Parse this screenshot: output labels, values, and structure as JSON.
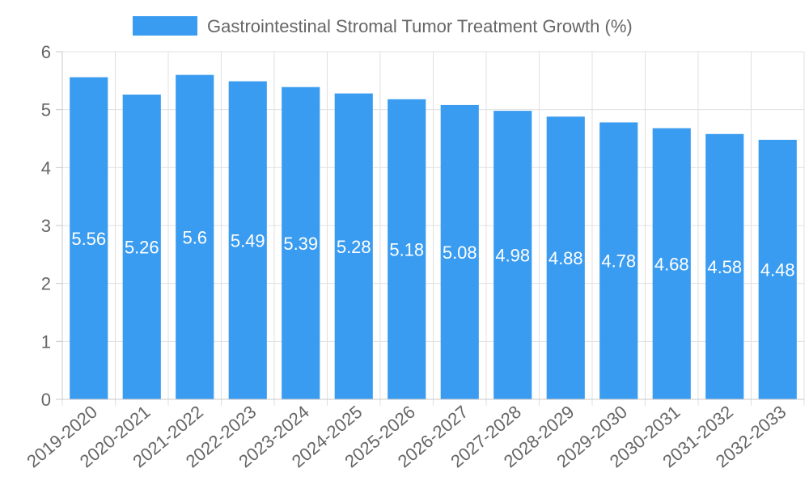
{
  "chart_data": {
    "type": "bar",
    "title": "",
    "xlabel": "",
    "ylabel": "",
    "ylim": [
      0,
      6
    ],
    "yticks": [
      0,
      1,
      2,
      3,
      4,
      5,
      6
    ],
    "grid": true,
    "legend_position": "top-center",
    "categories": [
      "2019-2020",
      "2020-2021",
      "2021-2022",
      "2022-2023",
      "2023-2024",
      "2024-2025",
      "2025-2026",
      "2026-2027",
      "2027-2028",
      "2028-2029",
      "2029-2030",
      "2030-2031",
      "2031-2032",
      "2032-2033"
    ],
    "series": [
      {
        "name": "Gastrointestinal Stromal Tumor Treatment Growth (%)",
        "color": "#3a9cf0",
        "values": [
          5.56,
          5.26,
          5.6,
          5.49,
          5.39,
          5.28,
          5.18,
          5.08,
          4.98,
          4.88,
          4.78,
          4.68,
          4.58,
          4.48
        ]
      }
    ]
  }
}
